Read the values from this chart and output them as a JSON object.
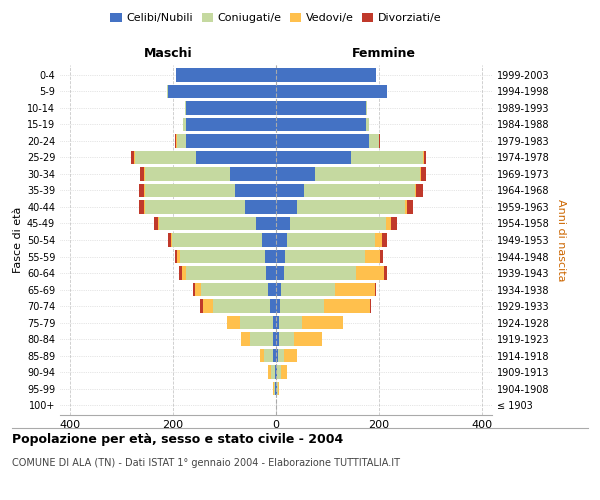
{
  "age_groups": [
    "100+",
    "95-99",
    "90-94",
    "85-89",
    "80-84",
    "75-79",
    "70-74",
    "65-69",
    "60-64",
    "55-59",
    "50-54",
    "45-49",
    "40-44",
    "35-39",
    "30-34",
    "25-29",
    "20-24",
    "15-19",
    "10-14",
    "5-9",
    "0-4"
  ],
  "birth_years": [
    "≤ 1903",
    "1904-1908",
    "1909-1913",
    "1914-1918",
    "1919-1923",
    "1924-1928",
    "1929-1933",
    "1934-1938",
    "1939-1943",
    "1944-1948",
    "1949-1953",
    "1954-1958",
    "1959-1963",
    "1964-1968",
    "1969-1973",
    "1974-1978",
    "1979-1983",
    "1984-1988",
    "1989-1993",
    "1994-1998",
    "1999-2003"
  ],
  "males": {
    "celibi": [
      0,
      1,
      2,
      5,
      5,
      5,
      12,
      15,
      20,
      22,
      28,
      38,
      60,
      80,
      90,
      155,
      175,
      175,
      175,
      210,
      195
    ],
    "coniugati": [
      0,
      2,
      8,
      18,
      45,
      65,
      110,
      130,
      155,
      165,
      175,
      190,
      195,
      175,
      165,
      120,
      18,
      5,
      2,
      1,
      0
    ],
    "vedovi": [
      0,
      2,
      5,
      8,
      18,
      25,
      20,
      12,
      8,
      5,
      2,
      2,
      2,
      1,
      1,
      2,
      1,
      0,
      0,
      0,
      0
    ],
    "divorziati": [
      0,
      0,
      0,
      0,
      0,
      0,
      5,
      5,
      5,
      5,
      5,
      8,
      10,
      10,
      8,
      5,
      2,
      0,
      0,
      0,
      0
    ]
  },
  "females": {
    "nubili": [
      0,
      1,
      2,
      3,
      5,
      5,
      8,
      10,
      15,
      18,
      22,
      28,
      40,
      55,
      75,
      145,
      180,
      175,
      175,
      215,
      195
    ],
    "coniugate": [
      0,
      2,
      8,
      12,
      30,
      45,
      85,
      105,
      140,
      155,
      170,
      185,
      210,
      215,
      205,
      140,
      20,
      5,
      1,
      1,
      0
    ],
    "vedove": [
      0,
      3,
      12,
      25,
      55,
      80,
      90,
      78,
      55,
      30,
      15,
      10,
      5,
      3,
      2,
      2,
      1,
      0,
      0,
      0,
      0
    ],
    "divorziate": [
      0,
      0,
      0,
      0,
      0,
      0,
      2,
      2,
      5,
      5,
      8,
      12,
      12,
      12,
      10,
      5,
      2,
      0,
      0,
      0,
      0
    ]
  },
  "colors": {
    "celibi": "#4472c4",
    "coniugati": "#c5d9a0",
    "vedovi": "#ffc04d",
    "divorziati": "#c0392b"
  },
  "title": "Popolazione per età, sesso e stato civile - 2004",
  "subtitle": "COMUNE DI ALA (TN) - Dati ISTAT 1° gennaio 2004 - Elaborazione TUTTITALIA.IT",
  "xlim": 420,
  "ylabel_left": "Fasce di età",
  "ylabel_right": "Anni di nascita",
  "xlabel_left": "Maschi",
  "xlabel_right": "Femmine"
}
